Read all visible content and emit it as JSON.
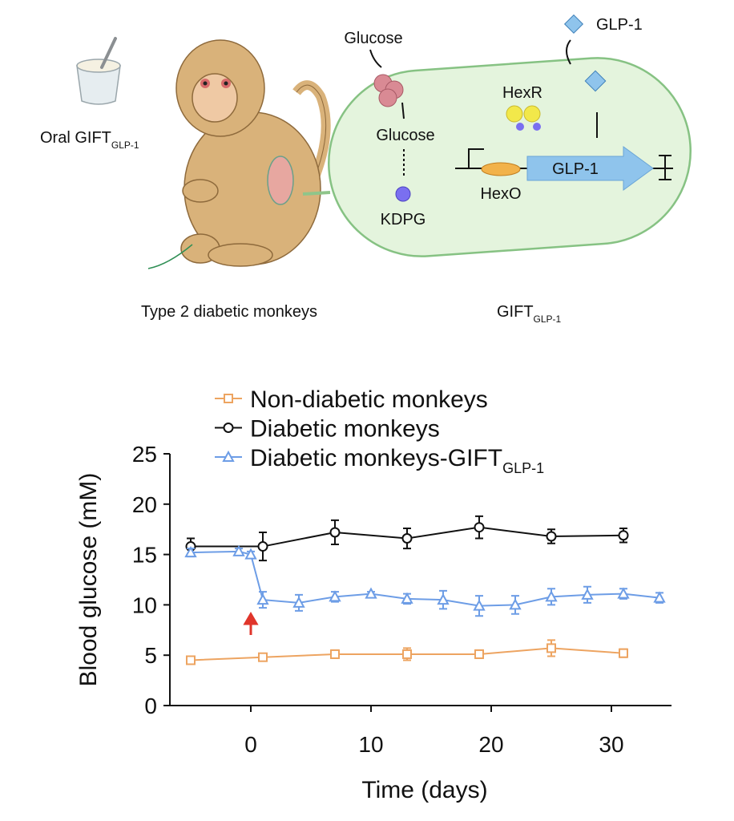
{
  "diagram": {
    "oral_label": {
      "main": "Oral GIFT",
      "sub": "GLP-1"
    },
    "monkey_caption": "Type 2 diabetic monkeys",
    "cell_caption": {
      "main": "GIFT",
      "sub": "GLP-1"
    },
    "glucose_outside": "Glucose",
    "glucose_inside": "Glucose",
    "kdpg": "KDPG",
    "hexr": "HexR",
    "hexo": "HexO",
    "gene": "GLP-1",
    "secreted": "GLP-1"
  },
  "chart_data": {
    "type": "line",
    "xlabel": "Time (days)",
    "ylabel": "Blood glucose (mM)",
    "xlim": [
      -7,
      35
    ],
    "xticks": [
      0,
      10,
      20,
      30
    ],
    "ylim": [
      0,
      25
    ],
    "yticks": [
      0,
      5,
      10,
      15,
      20,
      25
    ],
    "legend": "top",
    "annotation_arrow": {
      "x": 0,
      "color": "#e0352b"
    },
    "series": [
      {
        "name": "Non-diabetic monkeys",
        "color": "#eda461",
        "marker": "square",
        "x": [
          -5,
          1,
          7,
          13,
          19,
          25,
          31
        ],
        "values": [
          4.5,
          4.8,
          5.1,
          5.1,
          5.1,
          5.7,
          5.2
        ],
        "errors": [
          0.2,
          0.3,
          0.4,
          0.6,
          0.4,
          0.8,
          0.4
        ]
      },
      {
        "name": "Diabetic monkeys",
        "color": "#111111",
        "marker": "circle",
        "x": [
          -5,
          1,
          7,
          13,
          19,
          25,
          31
        ],
        "values": [
          15.8,
          15.8,
          17.2,
          16.6,
          17.7,
          16.8,
          16.9
        ],
        "errors": [
          0.8,
          1.4,
          1.2,
          1.0,
          1.1,
          0.7,
          0.7
        ]
      },
      {
        "name": "Diabetic monkeys-GIFT",
        "name_sub": "GLP-1",
        "color": "#6d9de6",
        "marker": "triangle",
        "x": [
          -5,
          -1,
          0,
          1,
          4,
          7,
          10,
          13,
          16,
          19,
          22,
          25,
          28,
          31,
          34
        ],
        "values": [
          15.2,
          15.3,
          15.0,
          10.5,
          10.2,
          10.8,
          11.1,
          10.6,
          10.5,
          9.9,
          10.0,
          10.8,
          11.0,
          11.1,
          10.7
        ],
        "errors": [
          0.4,
          0.3,
          0.3,
          0.8,
          0.8,
          0.5,
          0.2,
          0.5,
          0.9,
          1.0,
          0.9,
          0.8,
          0.8,
          0.5,
          0.5
        ]
      }
    ]
  }
}
